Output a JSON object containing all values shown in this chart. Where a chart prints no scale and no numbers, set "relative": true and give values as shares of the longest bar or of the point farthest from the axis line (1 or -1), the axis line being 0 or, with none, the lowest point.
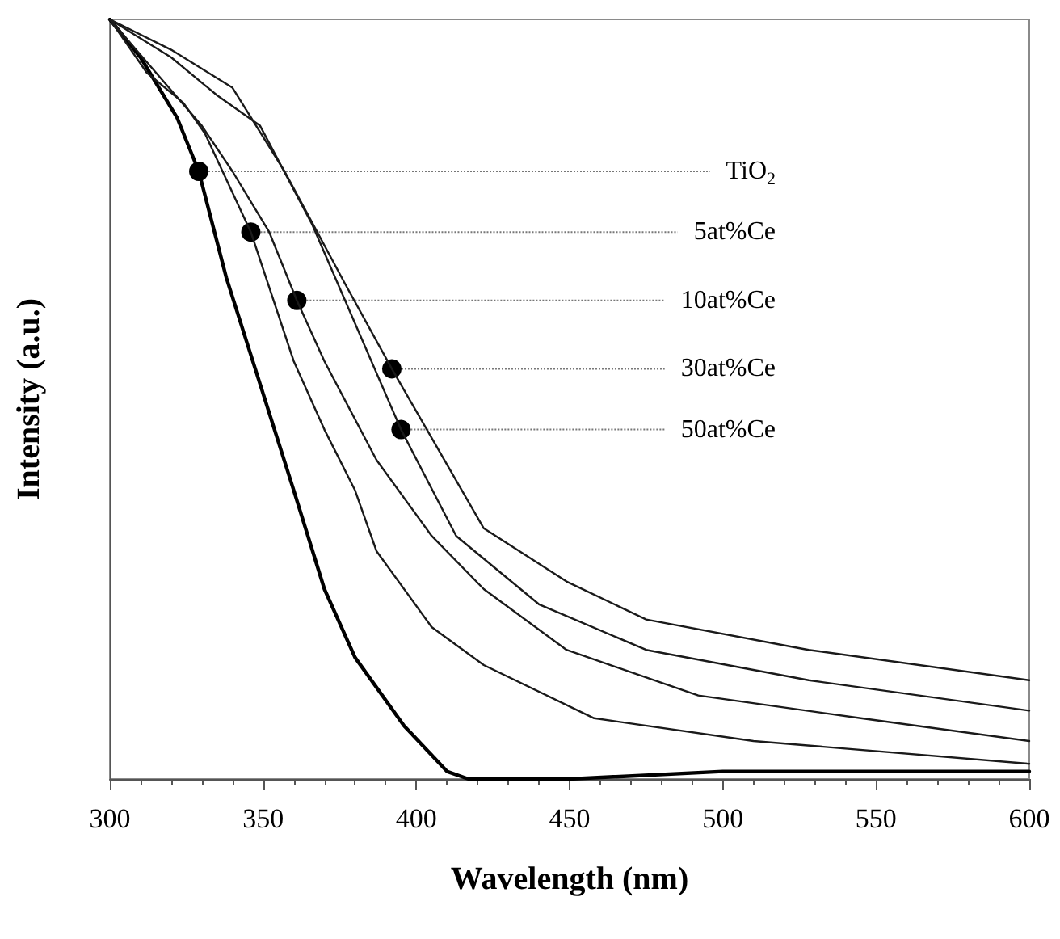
{
  "chart_data": {
    "type": "line",
    "xlabel": "Wavelength (nm)",
    "ylabel": "Intensity (a.u.)",
    "relative": true,
    "xlim": [
      300,
      600
    ],
    "xticks": [
      300,
      350,
      400,
      450,
      500,
      550,
      600
    ],
    "grid": false,
    "marker": "none",
    "line_style": "solid",
    "series": [
      {
        "color": "#000000",
        "x": [
          300,
          310,
          322,
          329,
          338,
          349,
          360,
          370,
          380,
          396,
          410,
          417,
          450,
          500,
          550,
          600
        ],
        "values": [
          1.0,
          0.95,
          0.87,
          0.8,
          0.66,
          0.52,
          0.38,
          0.25,
          0.16,
          0.07,
          0.01,
          0.0,
          0.0,
          0.01,
          0.01,
          0.01
        ]
      },
      {
        "color": "#1a1a1a",
        "x": [
          300,
          312,
          324,
          331,
          346,
          360,
          370,
          380,
          387,
          405,
          422,
          458,
          510,
          600
        ],
        "values": [
          1.0,
          0.93,
          0.89,
          0.85,
          0.72,
          0.55,
          0.46,
          0.38,
          0.3,
          0.2,
          0.15,
          0.08,
          0.05,
          0.02
        ]
      },
      {
        "color": "#1a1a1a",
        "x": [
          300,
          315,
          330,
          340,
          352,
          361,
          370,
          387,
          405,
          422,
          449,
          492,
          545,
          600
        ],
        "values": [
          1.0,
          0.93,
          0.86,
          0.8,
          0.72,
          0.63,
          0.55,
          0.42,
          0.32,
          0.25,
          0.17,
          0.11,
          0.08,
          0.05
        ]
      },
      {
        "color": "#1a1a1a",
        "x": [
          300,
          320,
          335,
          349,
          366,
          395,
          413,
          440,
          475,
          528,
          600
        ],
        "values": [
          1.0,
          0.95,
          0.9,
          0.86,
          0.73,
          0.46,
          0.32,
          0.23,
          0.17,
          0.13,
          0.09
        ]
      },
      {
        "color": "#1a1a1a",
        "x": [
          300,
          320,
          340,
          357,
          377,
          392,
          422,
          449,
          475,
          528,
          600
        ],
        "values": [
          1.0,
          0.96,
          0.91,
          0.8,
          0.65,
          0.54,
          0.33,
          0.26,
          0.21,
          0.17,
          0.13
        ]
      }
    ],
    "annotations": [
      {
        "text": "TiO$_{2}$",
        "x": 329,
        "y": 0.8
      },
      {
        "text": "5at%Ce",
        "x": 346,
        "y": 0.72
      },
      {
        "text": "10at%Ce",
        "x": 361,
        "y": 0.63
      },
      {
        "text": "30at%Ce",
        "x": 392,
        "y": 0.54
      },
      {
        "text": "50at%Ce",
        "x": 395,
        "y": 0.46
      }
    ]
  }
}
